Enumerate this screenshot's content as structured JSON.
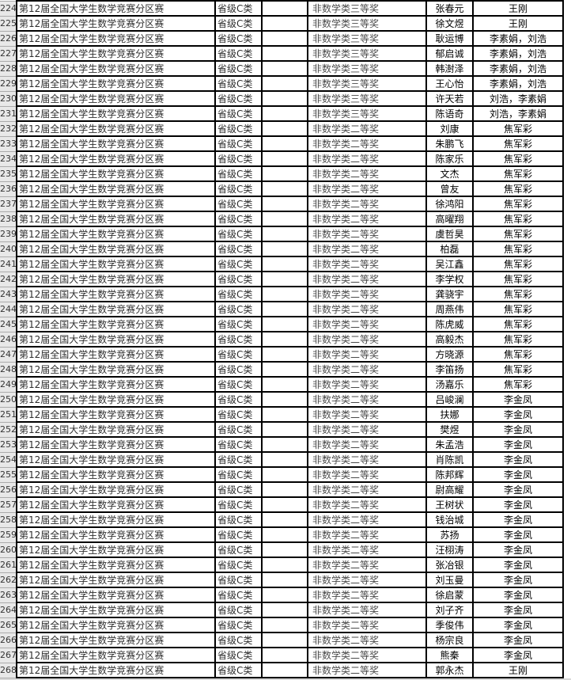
{
  "app": {
    "kind": "spreadsheet-grid",
    "visible_row_range": "224-268"
  },
  "colors": {
    "grid_border": "#000000",
    "row_header_bg": "#e8e8e8",
    "row_header_border": "#ababab",
    "cell_text": "#2e2e2e",
    "award_text": "#4a4a4a",
    "name_text": "#000000"
  },
  "table": {
    "columns": [
      "row_number",
      "competition",
      "level",
      "blank",
      "award",
      "student",
      "advisor"
    ],
    "rows": [
      {
        "n": "224",
        "competition": "第12届全国大学生数学竞赛分区赛",
        "level": "省级C类",
        "blank": "",
        "award": "非数学类三等奖",
        "student": "张春元",
        "advisor": "王刚"
      },
      {
        "n": "225",
        "competition": "第12届全国大学生数学竞赛分区赛",
        "level": "省级C类",
        "blank": "",
        "award": "非数学类三等奖",
        "student": "徐文煜",
        "advisor": "王刚"
      },
      {
        "n": "226",
        "competition": "第12届全国大学生数学竞赛分区赛",
        "level": "省级C类",
        "blank": "",
        "award": "非数学类三等奖",
        "student": "耿运博",
        "advisor": "李素娟，刘浩"
      },
      {
        "n": "227",
        "competition": "第12届全国大学生数学竞赛分区赛",
        "level": "省级C类",
        "blank": "",
        "award": "非数学类三等奖",
        "student": "郁启诚",
        "advisor": "李素娟，刘浩"
      },
      {
        "n": "228",
        "competition": "第12届全国大学生数学竞赛分区赛",
        "level": "省级C类",
        "blank": "",
        "award": "非数学类三等奖",
        "student": "韩澍泽",
        "advisor": "李素娟，刘浩"
      },
      {
        "n": "229",
        "competition": "第12届全国大学生数学竞赛分区赛",
        "level": "省级C类",
        "blank": "",
        "award": "非数学类三等奖",
        "student": "王心怡",
        "advisor": "李素娟，刘浩"
      },
      {
        "n": "230",
        "competition": "第12届全国大学生数学竞赛分区赛",
        "level": "省级C类",
        "blank": "",
        "award": "非数学类三等奖",
        "student": "许天若",
        "advisor": "刘浩，李素娟"
      },
      {
        "n": "231",
        "competition": "第12届全国大学生数学竞赛分区赛",
        "level": "省级C类",
        "blank": "",
        "award": "非数学类三等奖",
        "student": "陈语奇",
        "advisor": "刘浩，李素娟"
      },
      {
        "n": "232",
        "competition": "第12届全国大学生数学竞赛分区赛",
        "level": "省级C类",
        "blank": "",
        "award": "非数学类二等奖",
        "student": "刘康",
        "advisor": "焦军彩"
      },
      {
        "n": "233",
        "competition": "第12届全国大学生数学竞赛分区赛",
        "level": "省级C类",
        "blank": "",
        "award": "非数学类二等奖",
        "student": "朱鹏飞",
        "advisor": "焦军彩"
      },
      {
        "n": "234",
        "competition": "第12届全国大学生数学竞赛分区赛",
        "level": "省级C类",
        "blank": "",
        "award": "非数学类二等奖",
        "student": "陈家乐",
        "advisor": "焦军彩"
      },
      {
        "n": "235",
        "competition": "第12届全国大学生数学竞赛分区赛",
        "level": "省级C类",
        "blank": "",
        "award": "非数学类二等奖",
        "student": "文杰",
        "advisor": "焦军彩"
      },
      {
        "n": "236",
        "competition": "第12届全国大学生数学竞赛分区赛",
        "level": "省级C类",
        "blank": "",
        "award": "非数学类二等奖",
        "student": "曾友",
        "advisor": "焦军彩"
      },
      {
        "n": "237",
        "competition": "第12届全国大学生数学竞赛分区赛",
        "level": "省级C类",
        "blank": "",
        "award": "非数学类二等奖",
        "student": "徐鸿阳",
        "advisor": "焦军彩"
      },
      {
        "n": "238",
        "competition": "第12届全国大学生数学竞赛分区赛",
        "level": "省级C类",
        "blank": "",
        "award": "非数学类二等奖",
        "student": "高曜翔",
        "advisor": "焦军彩"
      },
      {
        "n": "239",
        "competition": "第12届全国大学生数学竞赛分区赛",
        "level": "省级C类",
        "blank": "",
        "award": "非数学类二等奖",
        "student": "虞哲昊",
        "advisor": "焦军彩"
      },
      {
        "n": "240",
        "competition": "第12届全国大学生数学竞赛分区赛",
        "level": "省级C类",
        "blank": "",
        "award": "非数学类二等奖",
        "student": "柏磊",
        "advisor": "焦军彩"
      },
      {
        "n": "241",
        "competition": "第12届全国大学生数学竞赛分区赛",
        "level": "省级C类",
        "blank": "",
        "award": "非数学类二等奖",
        "student": "吴江鑫",
        "advisor": "焦军彩"
      },
      {
        "n": "242",
        "competition": "第12届全国大学生数学竞赛分区赛",
        "level": "省级C类",
        "blank": "",
        "award": "非数学类二等奖",
        "student": "李学权",
        "advisor": "焦军彩"
      },
      {
        "n": "243",
        "competition": "第12届全国大学生数学竞赛分区赛",
        "level": "省级C类",
        "blank": "",
        "award": "非数学类二等奖",
        "student": "龚骁宇",
        "advisor": "焦军彩"
      },
      {
        "n": "244",
        "competition": "第12届全国大学生数学竞赛分区赛",
        "level": "省级C类",
        "blank": "",
        "award": "非数学类二等奖",
        "student": "周燕伟",
        "advisor": "焦军彩"
      },
      {
        "n": "245",
        "competition": "第12届全国大学生数学竞赛分区赛",
        "level": "省级C类",
        "blank": "",
        "award": "非数学类二等奖",
        "student": "陈虎威",
        "advisor": "焦军彩"
      },
      {
        "n": "246",
        "competition": "第12届全国大学生数学竞赛分区赛",
        "level": "省级C类",
        "blank": "",
        "award": "非数学类二等奖",
        "student": "高毅杰",
        "advisor": "焦军彩"
      },
      {
        "n": "247",
        "competition": "第12届全国大学生数学竞赛分区赛",
        "level": "省级C类",
        "blank": "",
        "award": "非数学类二等奖",
        "student": "方晓源",
        "advisor": "焦军彩"
      },
      {
        "n": "248",
        "competition": "第12届全国大学生数学竞赛分区赛",
        "level": "省级C类",
        "blank": "",
        "award": "非数学类二等奖",
        "student": "李笛扬",
        "advisor": "焦军彩"
      },
      {
        "n": "249",
        "competition": "第12届全国大学生数学竞赛分区赛",
        "level": "省级C类",
        "blank": "",
        "award": "非数学类二等奖",
        "student": "汤嘉乐",
        "advisor": "焦军彩"
      },
      {
        "n": "250",
        "competition": "第12届全国大学生数学竞赛分区赛",
        "level": "省级C类",
        "blank": "",
        "award": "非数学类二等奖",
        "student": "吕峻澜",
        "advisor": "李金凤"
      },
      {
        "n": "251",
        "competition": "第12届全国大学生数学竞赛分区赛",
        "level": "省级C类",
        "blank": "",
        "award": "非数学类二等奖",
        "student": "扶娜",
        "advisor": "李金凤"
      },
      {
        "n": "252",
        "competition": "第12届全国大学生数学竞赛分区赛",
        "level": "省级C类",
        "blank": "",
        "award": "非数学类二等奖",
        "student": "樊煜",
        "advisor": "李金凤"
      },
      {
        "n": "253",
        "competition": "第12届全国大学生数学竞赛分区赛",
        "level": "省级C类",
        "blank": "",
        "award": "非数学类二等奖",
        "student": "朱孟浩",
        "advisor": "李金凤"
      },
      {
        "n": "254",
        "competition": "第12届全国大学生数学竞赛分区赛",
        "level": "省级C类",
        "blank": "",
        "award": "非数学类二等奖",
        "student": "肖陈凯",
        "advisor": "李金凤"
      },
      {
        "n": "255",
        "competition": "第12届全国大学生数学竞赛分区赛",
        "level": "省级C类",
        "blank": "",
        "award": "非数学类二等奖",
        "student": "陈邦辉",
        "advisor": "李金凤"
      },
      {
        "n": "256",
        "competition": "第12届全国大学生数学竞赛分区赛",
        "level": "省级C类",
        "blank": "",
        "award": "非数学类二等奖",
        "student": "尉高耀",
        "advisor": "李金凤"
      },
      {
        "n": "257",
        "competition": "第12届全国大学生数学竞赛分区赛",
        "level": "省级C类",
        "blank": "",
        "award": "非数学类二等奖",
        "student": "王树状",
        "advisor": "李金凤"
      },
      {
        "n": "258",
        "competition": "第12届全国大学生数学竞赛分区赛",
        "level": "省级C类",
        "blank": "",
        "award": "非数学类二等奖",
        "student": "钱治城",
        "advisor": "李金凤"
      },
      {
        "n": "259",
        "competition": "第12届全国大学生数学竞赛分区赛",
        "level": "省级C类",
        "blank": "",
        "award": "非数学类二等奖",
        "student": "苏扬",
        "advisor": "李金凤"
      },
      {
        "n": "260",
        "competition": "第12届全国大学生数学竞赛分区赛",
        "level": "省级C类",
        "blank": "",
        "award": "非数学类二等奖",
        "student": "汪栩涛",
        "advisor": "李金凤"
      },
      {
        "n": "261",
        "competition": "第12届全国大学生数学竞赛分区赛",
        "level": "省级C类",
        "blank": "",
        "award": "非数学类二等奖",
        "student": "张冶银",
        "advisor": "李金凤"
      },
      {
        "n": "262",
        "competition": "第12届全国大学生数学竞赛分区赛",
        "level": "省级C类",
        "blank": "",
        "award": "非数学类二等奖",
        "student": "刘玉曼",
        "advisor": "李金凤"
      },
      {
        "n": "263",
        "competition": "第12届全国大学生数学竞赛分区赛",
        "level": "省级C类",
        "blank": "",
        "award": "非数学类二等奖",
        "student": "徐启蒙",
        "advisor": "李金凤"
      },
      {
        "n": "264",
        "competition": "第12届全国大学生数学竞赛分区赛",
        "level": "省级C类",
        "blank": "",
        "award": "非数学类二等奖",
        "student": "刘子齐",
        "advisor": "李金凤"
      },
      {
        "n": "265",
        "competition": "第12届全国大学生数学竞赛分区赛",
        "level": "省级C类",
        "blank": "",
        "award": "非数学类二等奖",
        "student": "季俊伟",
        "advisor": "李金凤"
      },
      {
        "n": "266",
        "competition": "第12届全国大学生数学竞赛分区赛",
        "level": "省级C类",
        "blank": "",
        "award": "非数学类二等奖",
        "student": "杨宗良",
        "advisor": "李金凤"
      },
      {
        "n": "267",
        "competition": "第12届全国大学生数学竞赛分区赛",
        "level": "省级C类",
        "blank": "",
        "award": "非数学类二等奖",
        "student": "熊秦",
        "advisor": "李金凤"
      },
      {
        "n": "268",
        "competition": "第12届全国大学生数学竞赛分区赛",
        "level": "省级C类",
        "blank": "",
        "award": "非数学类二等奖",
        "student": "郭永杰",
        "advisor": "王刚"
      }
    ]
  }
}
